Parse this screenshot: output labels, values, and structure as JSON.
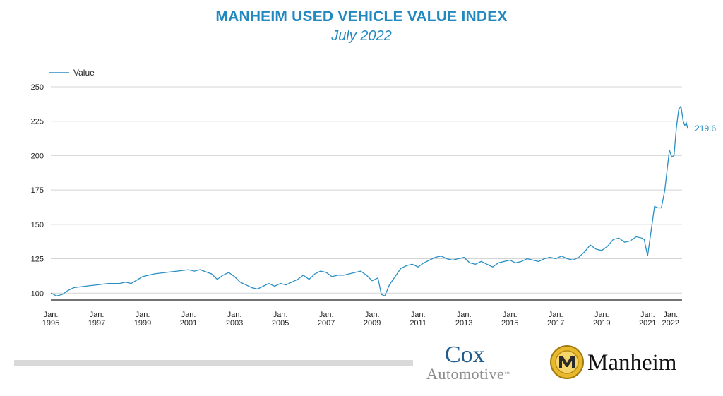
{
  "colors": {
    "title": "#2289c0",
    "series": "#2a8fc4",
    "grid": "#d4d4d4",
    "axis": "#222222",
    "cox_blue": "#1e5a8a",
    "cox_gray": "#8c8c8c",
    "manheim_gold": "#e8b92c"
  },
  "chart_data": {
    "type": "line",
    "title": "MANHEIM USED VEHICLE VALUE INDEX",
    "subtitle": "July 2022",
    "legend": {
      "entries": [
        "Value"
      ],
      "placement": "top-left"
    },
    "ylim": [
      95,
      250
    ],
    "yticks": [
      100,
      125,
      150,
      175,
      200,
      225,
      250
    ],
    "xlim": [
      1995.0,
      2022.5
    ],
    "xticks": [
      {
        "value": 1995,
        "line1": "Jan.",
        "line2": "1995"
      },
      {
        "value": 1997,
        "line1": "Jan.",
        "line2": "1997"
      },
      {
        "value": 1999,
        "line1": "Jan.",
        "line2": "1999"
      },
      {
        "value": 2001,
        "line1": "Jan.",
        "line2": "2001"
      },
      {
        "value": 2003,
        "line1": "Jan.",
        "line2": "2003"
      },
      {
        "value": 2005,
        "line1": "Jan.",
        "line2": "2005"
      },
      {
        "value": 2007,
        "line1": "Jan.",
        "line2": "2007"
      },
      {
        "value": 2009,
        "line1": "Jan.",
        "line2": "2009"
      },
      {
        "value": 2011,
        "line1": "Jan.",
        "line2": "2011"
      },
      {
        "value": 2013,
        "line1": "Jan.",
        "line2": "2013"
      },
      {
        "value": 2015,
        "line1": "Jan.",
        "line2": "2015"
      },
      {
        "value": 2017,
        "line1": "Jan.",
        "line2": "2017"
      },
      {
        "value": 2019,
        "line1": "Jan.",
        "line2": "2019"
      },
      {
        "value": 2021,
        "line1": "Jan.",
        "line2": "2021"
      },
      {
        "value": 2022,
        "line1": "Jan.",
        "line2": "2022"
      }
    ],
    "grid": true,
    "end_label": "219.6",
    "series": [
      {
        "name": "Value",
        "points": [
          [
            1995.0,
            100
          ],
          [
            1995.25,
            98
          ],
          [
            1995.5,
            99
          ],
          [
            1995.75,
            102
          ],
          [
            1996.0,
            104
          ],
          [
            1996.5,
            105
          ],
          [
            1997.0,
            106
          ],
          [
            1997.5,
            107
          ],
          [
            1998.0,
            107
          ],
          [
            1998.25,
            108
          ],
          [
            1998.5,
            107
          ],
          [
            1999.0,
            112
          ],
          [
            1999.5,
            114
          ],
          [
            2000.0,
            115
          ],
          [
            2000.5,
            116
          ],
          [
            2001.0,
            117
          ],
          [
            2001.25,
            116
          ],
          [
            2001.5,
            117
          ],
          [
            2002.0,
            114
          ],
          [
            2002.25,
            110
          ],
          [
            2002.5,
            113
          ],
          [
            2002.75,
            115
          ],
          [
            2003.0,
            112
          ],
          [
            2003.25,
            108
          ],
          [
            2003.5,
            106
          ],
          [
            2003.75,
            104
          ],
          [
            2004.0,
            103
          ],
          [
            2004.25,
            105
          ],
          [
            2004.5,
            107
          ],
          [
            2004.75,
            105
          ],
          [
            2005.0,
            107
          ],
          [
            2005.25,
            106
          ],
          [
            2005.5,
            108
          ],
          [
            2005.75,
            110
          ],
          [
            2006.0,
            113
          ],
          [
            2006.25,
            110
          ],
          [
            2006.5,
            114
          ],
          [
            2006.75,
            116
          ],
          [
            2007.0,
            115
          ],
          [
            2007.25,
            112
          ],
          [
            2007.5,
            113
          ],
          [
            2007.75,
            113
          ],
          [
            2008.0,
            114
          ],
          [
            2008.25,
            115
          ],
          [
            2008.5,
            116
          ],
          [
            2008.75,
            113
          ],
          [
            2009.0,
            109
          ],
          [
            2009.25,
            111
          ],
          [
            2009.4,
            99
          ],
          [
            2009.55,
            98
          ],
          [
            2009.75,
            106
          ],
          [
            2010.0,
            112
          ],
          [
            2010.25,
            118
          ],
          [
            2010.5,
            120
          ],
          [
            2010.75,
            121
          ],
          [
            2011.0,
            119
          ],
          [
            2011.25,
            122
          ],
          [
            2011.5,
            124
          ],
          [
            2011.75,
            126
          ],
          [
            2012.0,
            127
          ],
          [
            2012.25,
            125
          ],
          [
            2012.5,
            124
          ],
          [
            2012.75,
            125
          ],
          [
            2013.0,
            126
          ],
          [
            2013.25,
            122
          ],
          [
            2013.5,
            121
          ],
          [
            2013.75,
            123
          ],
          [
            2014.0,
            121
          ],
          [
            2014.25,
            119
          ],
          [
            2014.5,
            122
          ],
          [
            2014.75,
            123
          ],
          [
            2015.0,
            124
          ],
          [
            2015.25,
            122
          ],
          [
            2015.5,
            123
          ],
          [
            2015.75,
            125
          ],
          [
            2016.0,
            124
          ],
          [
            2016.25,
            123
          ],
          [
            2016.5,
            125
          ],
          [
            2016.75,
            126
          ],
          [
            2017.0,
            125
          ],
          [
            2017.25,
            127
          ],
          [
            2017.5,
            125
          ],
          [
            2017.75,
            124
          ],
          [
            2018.0,
            126
          ],
          [
            2018.25,
            130
          ],
          [
            2018.5,
            135
          ],
          [
            2018.75,
            132
          ],
          [
            2019.0,
            131
          ],
          [
            2019.25,
            134
          ],
          [
            2019.5,
            139
          ],
          [
            2019.75,
            140
          ],
          [
            2020.0,
            137
          ],
          [
            2020.25,
            138
          ],
          [
            2020.5,
            141
          ],
          [
            2020.75,
            140
          ],
          [
            2020.85,
            139
          ],
          [
            2021.0,
            127
          ],
          [
            2021.15,
            145
          ],
          [
            2021.3,
            163
          ],
          [
            2021.45,
            162
          ],
          [
            2021.6,
            162
          ],
          [
            2021.75,
            175
          ],
          [
            2021.85,
            190
          ],
          [
            2021.95,
            204
          ],
          [
            2022.05,
            199
          ],
          [
            2022.15,
            200
          ],
          [
            2022.25,
            220
          ],
          [
            2022.35,
            233
          ],
          [
            2022.45,
            236
          ],
          [
            2022.55,
            225
          ],
          [
            2022.62,
            222
          ],
          [
            2022.68,
            224
          ],
          [
            2022.75,
            219.6
          ]
        ]
      }
    ]
  }
}
